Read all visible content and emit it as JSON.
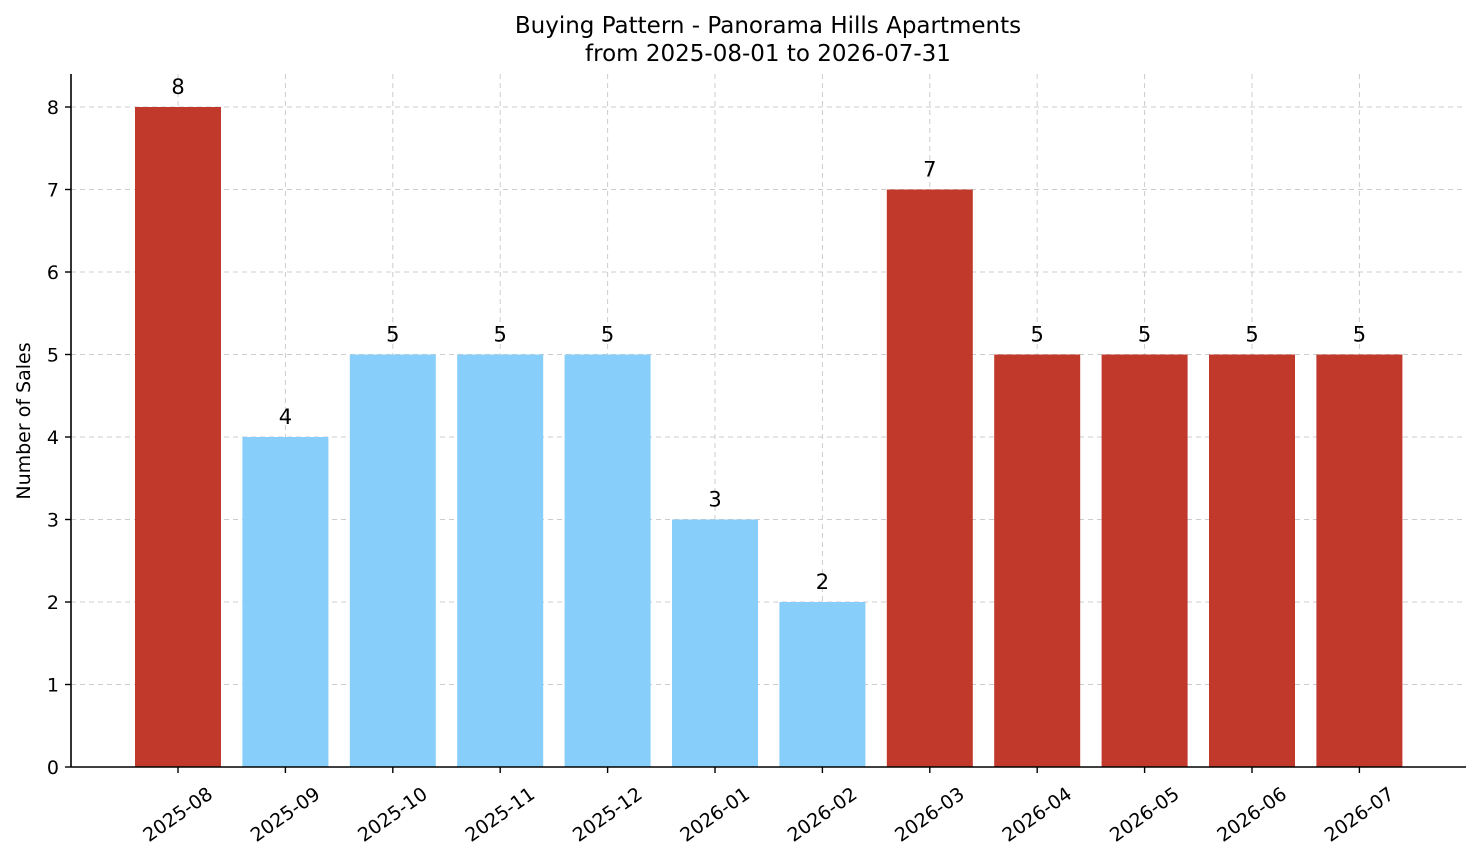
{
  "chart_data": {
    "type": "bar",
    "title": "Buying Pattern - Panorama Hills Apartments",
    "subtitle": "from 2025-08-01 to 2026-07-31",
    "xlabel": "",
    "ylabel": "Number of Sales",
    "categories": [
      "2025-08",
      "2025-09",
      "2025-10",
      "2025-11",
      "2025-12",
      "2026-01",
      "2026-02",
      "2026-03",
      "2026-04",
      "2026-05",
      "2026-06",
      "2026-07"
    ],
    "values": [
      8,
      4,
      5,
      5,
      5,
      3,
      2,
      7,
      5,
      5,
      5,
      5
    ],
    "bar_colors": [
      "#c0392b",
      "#87cefa",
      "#87cefa",
      "#87cefa",
      "#87cefa",
      "#87cefa",
      "#87cefa",
      "#c0392b",
      "#c0392b",
      "#c0392b",
      "#c0392b",
      "#c0392b"
    ],
    "yticks": [
      "0",
      "1",
      "2",
      "3",
      "4",
      "5",
      "6",
      "7",
      "8"
    ],
    "ylim": [
      0,
      8.4
    ],
    "grid": true,
    "data_labels": true
  }
}
